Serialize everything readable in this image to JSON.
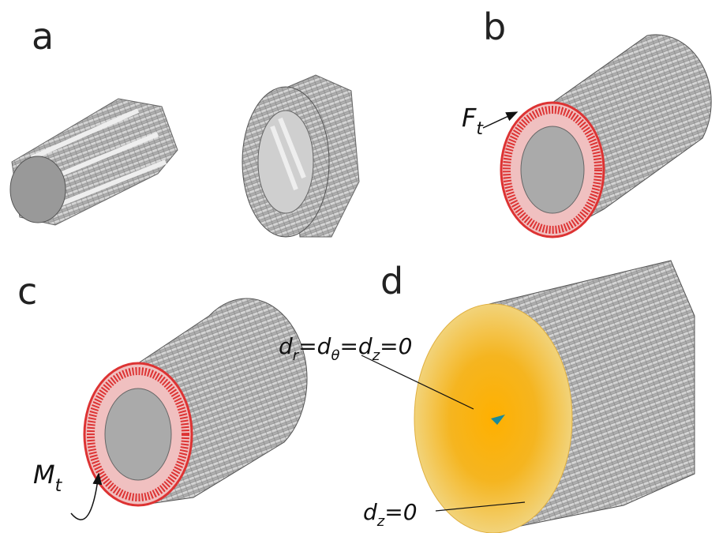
{
  "panels": [
    {
      "label": "a"
    },
    {
      "label": "b"
    },
    {
      "label": "c"
    },
    {
      "label": "d"
    }
  ],
  "annotations": {
    "force": {
      "symbol": "F",
      "subscript": "t"
    },
    "moment": {
      "symbol": "M",
      "subscript": "t"
    },
    "fixed_face": {
      "segments": [
        {
          "text": "d"
        },
        {
          "sub": "r"
        },
        {
          "text": "="
        },
        {
          "text": "d"
        },
        {
          "sub": "θ"
        },
        {
          "text": "="
        },
        {
          "text": "d"
        },
        {
          "sub": "z"
        },
        {
          "text": "=0"
        }
      ]
    },
    "fixed_axial": {
      "segments": [
        {
          "text": "d"
        },
        {
          "sub": "z"
        },
        {
          "text": "=0"
        }
      ]
    }
  }
}
